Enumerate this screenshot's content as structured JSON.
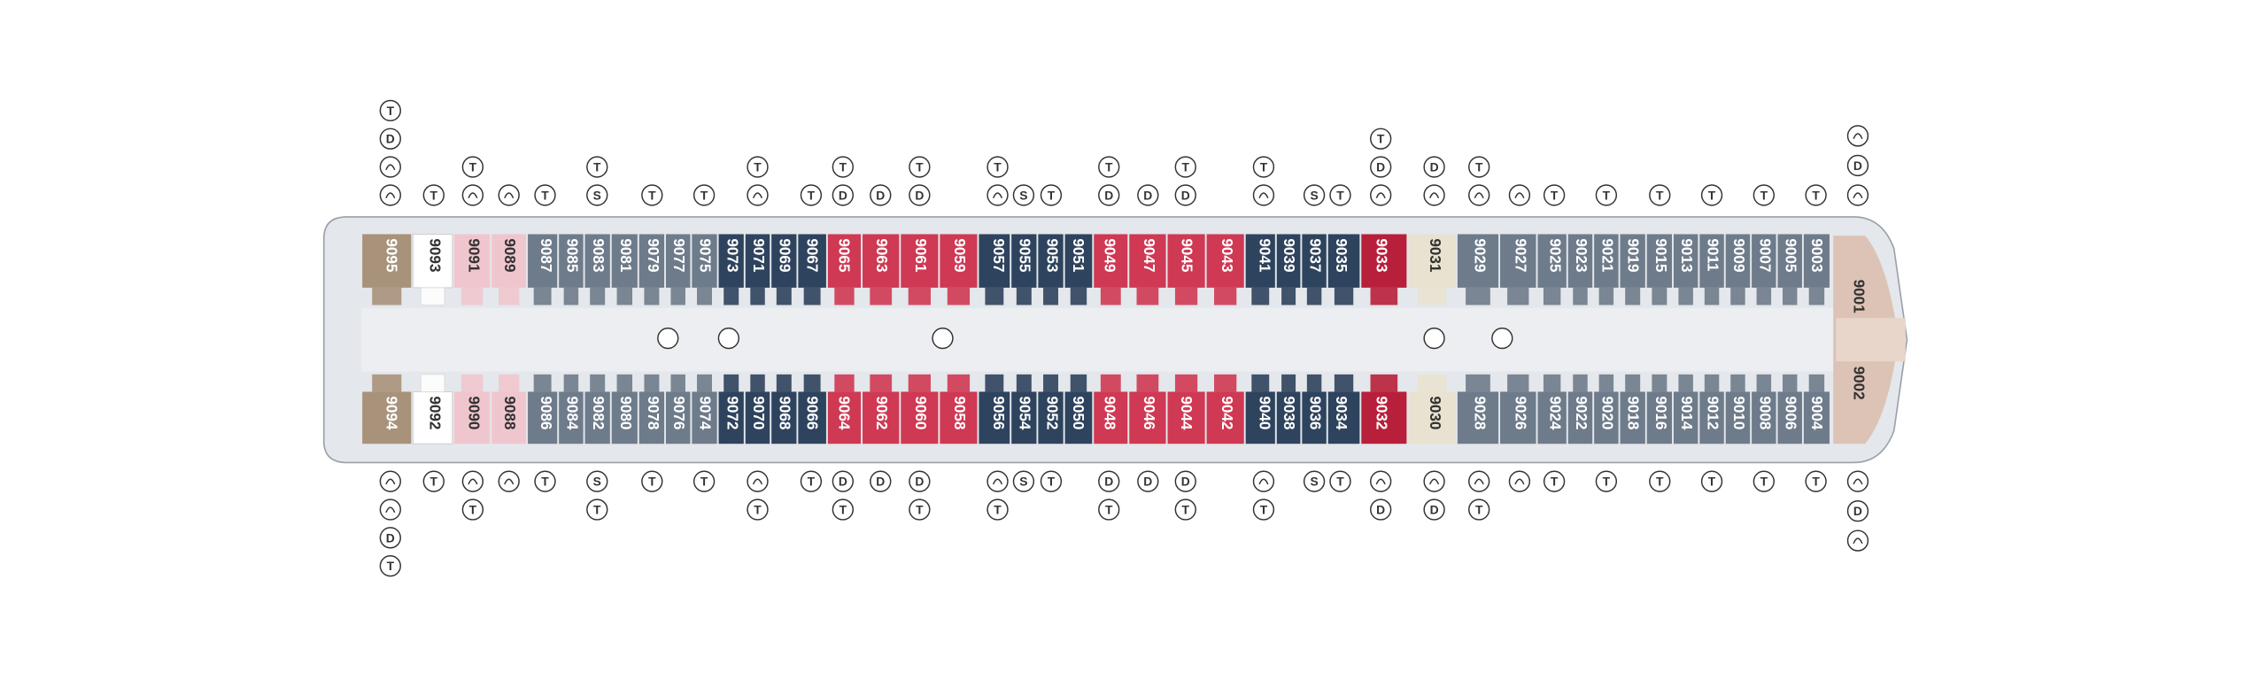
{
  "deck": {
    "top_row": [
      {
        "number": "9095",
        "color": "#a8927a",
        "icons": [
          "T",
          "D",
          null,
          null
        ]
      },
      {
        "number": "9093",
        "color": "#ffffff",
        "icons": [
          "T"
        ]
      },
      {
        "number": "9091",
        "color": "#f0c6ce",
        "icons": [
          "T",
          null
        ]
      },
      {
        "number": "9089",
        "color": "#f0c6ce",
        "icons": [
          null
        ]
      },
      {
        "number": "9087",
        "color": "#6e7b8b",
        "icons": [
          "T"
        ]
      },
      {
        "number": "9085",
        "color": "#6e7b8b",
        "icons": []
      },
      {
        "number": "9083",
        "color": "#6e7b8b",
        "icons": [
          "T",
          "S"
        ]
      },
      {
        "number": "9081",
        "color": "#6e7b8b",
        "icons": []
      },
      {
        "number": "9079",
        "color": "#6e7b8b",
        "icons": [
          "T"
        ]
      },
      {
        "number": "9077",
        "color": "#6e7b8b",
        "icons": []
      },
      {
        "number": "9075",
        "color": "#6e7b8b",
        "icons": [
          "T"
        ]
      },
      {
        "number": "9073",
        "color": "#2e435d",
        "icons": []
      },
      {
        "number": "9071",
        "color": "#2e435d",
        "icons": [
          "T",
          null
        ]
      },
      {
        "number": "9069",
        "color": "#2e435d",
        "icons": []
      },
      {
        "number": "9067",
        "color": "#2e435d",
        "icons": [
          "T"
        ]
      },
      {
        "number": "9065",
        "color": "#cf3953",
        "icons": [
          "T",
          "D"
        ]
      },
      {
        "number": "9063",
        "color": "#cf3953",
        "icons": [
          "D"
        ]
      },
      {
        "number": "9061",
        "color": "#cf3953",
        "icons": [
          "T",
          "D"
        ]
      },
      {
        "number": "9059",
        "color": "#cf3953",
        "icons": []
      },
      {
        "number": "9057",
        "color": "#2e435d",
        "icons": [
          "T",
          null
        ]
      },
      {
        "number": "9055",
        "color": "#2e435d",
        "icons": [
          "S"
        ]
      },
      {
        "number": "9053",
        "color": "#2e435d",
        "icons": [
          "T"
        ]
      },
      {
        "number": "9051",
        "color": "#2e435d",
        "icons": []
      },
      {
        "number": "9049",
        "color": "#cf3953",
        "icons": [
          "T",
          "D"
        ]
      },
      {
        "number": "9047",
        "color": "#cf3953",
        "icons": [
          "D"
        ]
      },
      {
        "number": "9045",
        "color": "#cf3953",
        "icons": [
          "T",
          "D"
        ]
      },
      {
        "number": "9043",
        "color": "#cf3953",
        "icons": []
      },
      {
        "number": "9041",
        "color": "#2e435d",
        "icons": [
          "T",
          null
        ]
      },
      {
        "number": "9039",
        "color": "#2e435d",
        "icons": []
      },
      {
        "number": "9037",
        "color": "#2e435d",
        "icons": [
          "S"
        ]
      },
      {
        "number": "9035",
        "color": "#2e435d",
        "icons": [
          "T"
        ]
      },
      {
        "number": "9033",
        "color": "#b81f3a",
        "icons": [
          "T",
          "D",
          null
        ]
      },
      {
        "number": "9031",
        "color": "#e9e2d0",
        "icons": [
          "D",
          null
        ]
      },
      {
        "number": "9029",
        "color": "#6e7b8b",
        "icons": [
          "T",
          null
        ]
      },
      {
        "number": "9027",
        "color": "#6e7b8b",
        "icons": [
          null
        ]
      },
      {
        "number": "9025",
        "color": "#6e7b8b",
        "icons": [
          "T"
        ]
      },
      {
        "number": "9023",
        "color": "#6e7b8b",
        "icons": []
      },
      {
        "number": "9021",
        "color": "#6e7b8b",
        "icons": [
          "T"
        ]
      },
      {
        "number": "9019",
        "color": "#6e7b8b",
        "icons": []
      },
      {
        "number": "9015",
        "color": "#6e7b8b",
        "icons": [
          "T"
        ]
      },
      {
        "number": "9013",
        "color": "#6e7b8b",
        "icons": []
      },
      {
        "number": "9011",
        "color": "#6e7b8b",
        "icons": [
          "T"
        ]
      },
      {
        "number": "9009",
        "color": "#6e7b8b",
        "icons": []
      },
      {
        "number": "9007",
        "color": "#6e7b8b",
        "icons": [
          "T"
        ]
      },
      {
        "number": "9005",
        "color": "#6e7b8b",
        "icons": []
      },
      {
        "number": "9003",
        "color": "#6e7b8b",
        "icons": [
          "T"
        ]
      }
    ],
    "bottom_row": [
      {
        "number": "9094",
        "color": "#a8927a",
        "icons": [
          null,
          null,
          "D",
          "T"
        ]
      },
      {
        "number": "9092",
        "color": "#ffffff",
        "icons": [
          "T"
        ]
      },
      {
        "number": "9090",
        "color": "#f0c6ce",
        "icons": [
          null,
          "T"
        ]
      },
      {
        "number": "9088",
        "color": "#f0c6ce",
        "icons": [
          null
        ]
      },
      {
        "number": "9086",
        "color": "#6e7b8b",
        "icons": [
          "T"
        ]
      },
      {
        "number": "9084",
        "color": "#6e7b8b",
        "icons": []
      },
      {
        "number": "9082",
        "color": "#6e7b8b",
        "icons": [
          "S",
          "T"
        ]
      },
      {
        "number": "9080",
        "color": "#6e7b8b",
        "icons": []
      },
      {
        "number": "9078",
        "color": "#6e7b8b",
        "icons": [
          "T"
        ]
      },
      {
        "number": "9076",
        "color": "#6e7b8b",
        "icons": []
      },
      {
        "number": "9074",
        "color": "#6e7b8b",
        "icons": [
          "T"
        ]
      },
      {
        "number": "9072",
        "color": "#2e435d",
        "icons": []
      },
      {
        "number": "9070",
        "color": "#2e435d",
        "icons": [
          null,
          "T"
        ]
      },
      {
        "number": "9068",
        "color": "#2e435d",
        "icons": []
      },
      {
        "number": "9066",
        "color": "#2e435d",
        "icons": [
          "T"
        ]
      },
      {
        "number": "9064",
        "color": "#cf3953",
        "icons": [
          "D",
          "T"
        ]
      },
      {
        "number": "9062",
        "color": "#cf3953",
        "icons": [
          "D"
        ]
      },
      {
        "number": "9060",
        "color": "#cf3953",
        "icons": [
          "D",
          "T"
        ]
      },
      {
        "number": "9058",
        "color": "#cf3953",
        "icons": []
      },
      {
        "number": "9056",
        "color": "#2e435d",
        "icons": [
          null,
          "T"
        ]
      },
      {
        "number": "9054",
        "color": "#2e435d",
        "icons": [
          "S"
        ]
      },
      {
        "number": "9052",
        "color": "#2e435d",
        "icons": [
          "T"
        ]
      },
      {
        "number": "9050",
        "color": "#2e435d",
        "icons": []
      },
      {
        "number": "9048",
        "color": "#cf3953",
        "icons": [
          "D",
          "T"
        ]
      },
      {
        "number": "9046",
        "color": "#cf3953",
        "icons": [
          "D"
        ]
      },
      {
        "number": "9044",
        "color": "#cf3953",
        "icons": [
          "D",
          "T"
        ]
      },
      {
        "number": "9042",
        "color": "#cf3953",
        "icons": []
      },
      {
        "number": "9040",
        "color": "#2e435d",
        "icons": [
          null,
          "T"
        ]
      },
      {
        "number": "9038",
        "color": "#2e435d",
        "icons": []
      },
      {
        "number": "9036",
        "color": "#2e435d",
        "icons": [
          "S"
        ]
      },
      {
        "number": "9034",
        "color": "#2e435d",
        "icons": [
          "T"
        ]
      },
      {
        "number": "9032",
        "color": "#b81f3a",
        "icons": [
          null,
          "D"
        ]
      },
      {
        "number": "9030",
        "color": "#e9e2d0",
        "icons": [
          null,
          "D"
        ]
      },
      {
        "number": "9028",
        "color": "#6e7b8b",
        "icons": [
          null,
          "T"
        ]
      },
      {
        "number": "9026",
        "color": "#6e7b8b",
        "icons": [
          null
        ]
      },
      {
        "number": "9024",
        "color": "#6e7b8b",
        "icons": [
          "T"
        ]
      },
      {
        "number": "9022",
        "color": "#6e7b8b",
        "icons": []
      },
      {
        "number": "9020",
        "color": "#6e7b8b",
        "icons": [
          "T"
        ]
      },
      {
        "number": "9018",
        "color": "#6e7b8b",
        "icons": []
      },
      {
        "number": "9016",
        "color": "#6e7b8b",
        "icons": [
          "T"
        ]
      },
      {
        "number": "9014",
        "color": "#6e7b8b",
        "icons": []
      },
      {
        "number": "9012",
        "color": "#6e7b8b",
        "icons": [
          "T"
        ]
      },
      {
        "number": "9010",
        "color": "#6e7b8b",
        "icons": []
      },
      {
        "number": "9008",
        "color": "#6e7b8b",
        "icons": [
          "T"
        ]
      },
      {
        "number": "9006",
        "color": "#6e7b8b",
        "icons": []
      },
      {
        "number": "9004",
        "color": "#6e7b8b",
        "icons": [
          "T"
        ]
      }
    ],
    "bow_top": {
      "number": "9001",
      "color": "#dcc3b5",
      "icons": [
        null,
        "D",
        null
      ]
    },
    "bow_bottom": {
      "number": "9002",
      "color": "#dcc3b5",
      "icons": [
        null,
        "D",
        null
      ]
    }
  }
}
